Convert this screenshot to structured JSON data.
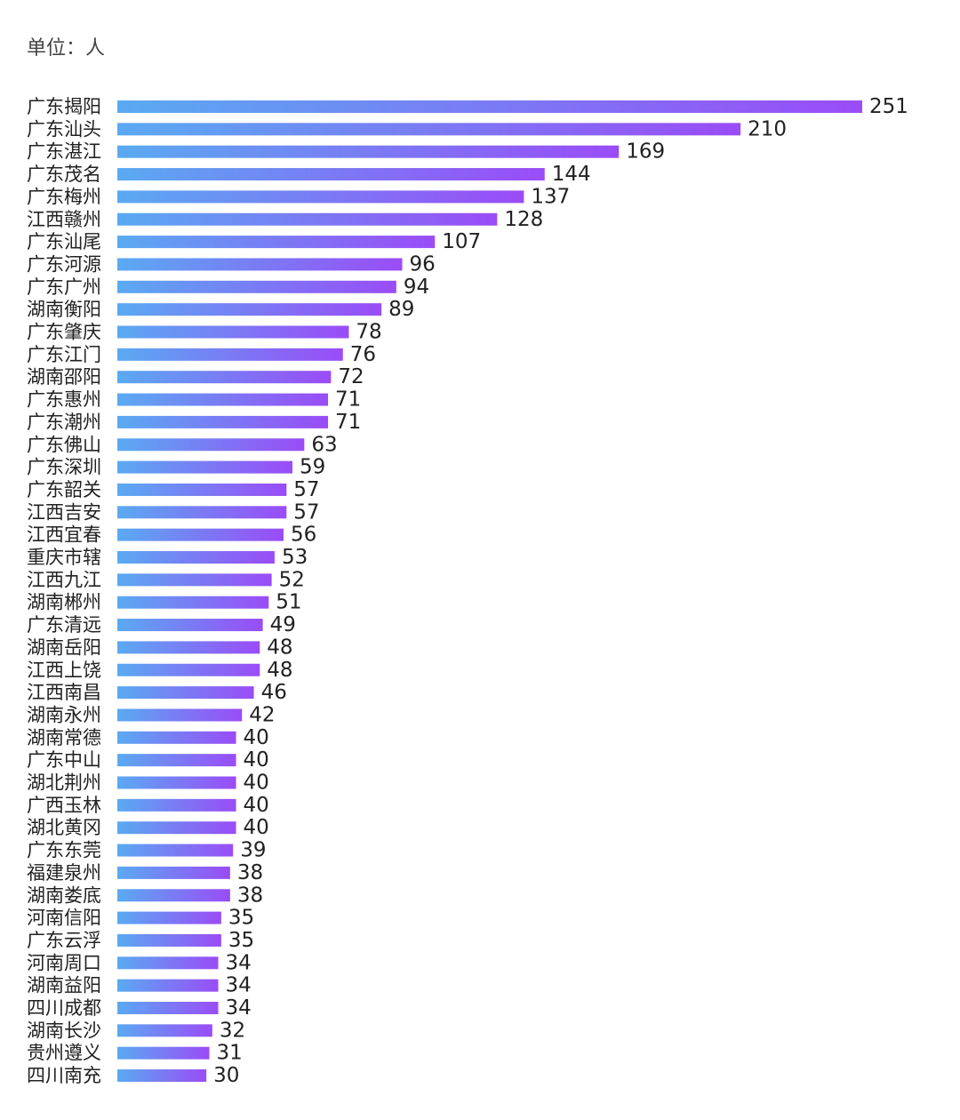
{
  "chart_data": {
    "type": "bar",
    "orientation": "horizontal",
    "unit_label": "单位：人",
    "title": "",
    "xlabel": "",
    "ylabel": "",
    "xlim": [
      0,
      251
    ],
    "grid": false,
    "legend": "none",
    "colors": {
      "gradient_start": "#5aaaf2",
      "gradient_end": "#9a4cf7",
      "text": "#222222"
    },
    "categories": [
      "广东揭阳",
      "广东汕头",
      "广东湛江",
      "广东茂名",
      "广东梅州",
      "江西赣州",
      "广东汕尾",
      "广东河源",
      "广东广州",
      "湖南衡阳",
      "广东肇庆",
      "广东江门",
      "湖南邵阳",
      "广东惠州",
      "广东潮州",
      "广东佛山",
      "广东深圳",
      "广东韶关",
      "江西吉安",
      "江西宜春",
      "重庆市辖",
      "江西九江",
      "湖南郴州",
      "广东清远",
      "湖南岳阳",
      "江西上饶",
      "江西南昌",
      "湖南永州",
      "湖南常德",
      "广东中山",
      "湖北荆州",
      "广西玉林",
      "湖北黄冈",
      "广东东莞",
      "福建泉州",
      "湖南娄底",
      "河南信阳",
      "广东云浮",
      "河南周口",
      "湖南益阳",
      "四川成都",
      "湖南长沙",
      "贵州遵义",
      "四川南充"
    ],
    "values": [
      251,
      210,
      169,
      144,
      137,
      128,
      107,
      96,
      94,
      89,
      78,
      76,
      72,
      71,
      71,
      63,
      59,
      57,
      57,
      56,
      53,
      52,
      51,
      49,
      48,
      48,
      46,
      42,
      40,
      40,
      40,
      40,
      40,
      39,
      38,
      38,
      35,
      35,
      34,
      34,
      34,
      32,
      31,
      30
    ]
  }
}
